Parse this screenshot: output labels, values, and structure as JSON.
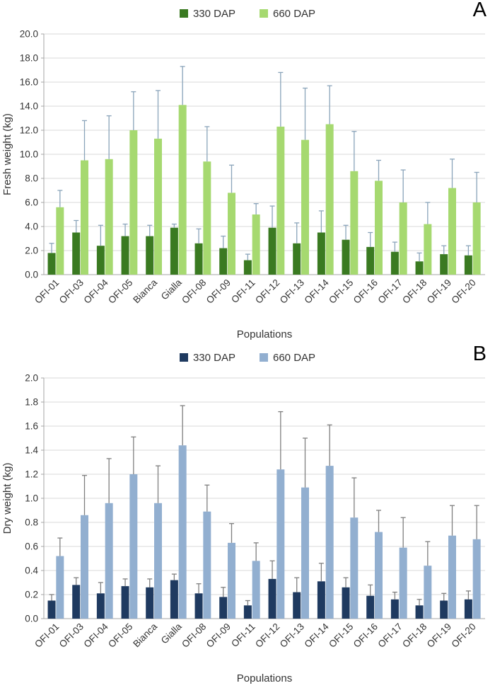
{
  "chart_data": [
    {
      "type": "bar",
      "panel_label": "A",
      "title": "",
      "xlabel": "Populations",
      "ylabel": "Fresh weight (kg)",
      "ylim": [
        0,
        20
      ],
      "ytick": 2,
      "tick_decimals": 1,
      "grid": true,
      "legend_position": "top",
      "error_color": "#8aa4ba",
      "categories": [
        "OFI-01",
        "OFI-03",
        "OFI-04",
        "OFI-05",
        "Bianca",
        "Gialla",
        "OFI-08",
        "OFI-09",
        "OFI-11",
        "OFI-12",
        "OFI-13",
        "OFI-14",
        "OFI-15",
        "OFI-16",
        "OFI-17",
        "OFI-18",
        "OFI-19",
        "OFI-20"
      ],
      "series": [
        {
          "name": "330 DAP",
          "color": "#3a7a21",
          "values": [
            1.8,
            3.5,
            2.4,
            3.2,
            3.2,
            3.9,
            2.6,
            2.2,
            1.2,
            3.9,
            2.6,
            3.5,
            2.9,
            2.3,
            1.9,
            1.1,
            1.7,
            1.6
          ],
          "errors": [
            0.8,
            1.0,
            1.7,
            1.0,
            0.9,
            0.3,
            1.2,
            1.0,
            0.5,
            1.8,
            1.7,
            1.8,
            1.2,
            1.2,
            0.8,
            0.7,
            0.7,
            0.8
          ]
        },
        {
          "name": "660 DAP",
          "color": "#a6d970",
          "values": [
            5.6,
            9.5,
            9.6,
            12.0,
            11.3,
            14.1,
            9.4,
            6.8,
            5.0,
            12.3,
            11.2,
            12.5,
            8.6,
            7.8,
            6.0,
            4.2,
            7.2,
            6.0
          ],
          "errors": [
            1.4,
            3.3,
            3.6,
            3.2,
            4.0,
            3.2,
            2.9,
            2.3,
            0.9,
            4.5,
            4.3,
            3.2,
            3.3,
            1.7,
            2.7,
            1.8,
            2.4,
            2.5
          ]
        }
      ]
    },
    {
      "type": "bar",
      "panel_label": "B",
      "title": "",
      "xlabel": "Populations",
      "ylabel": "Dry weight (kg)",
      "ylim": [
        0,
        2
      ],
      "ytick": 0.2,
      "tick_decimals": 1,
      "grid": true,
      "legend_position": "top",
      "error_color": "#7f7f7f",
      "categories": [
        "OFI-01",
        "OFI-03",
        "OFI-04",
        "OFI-05",
        "Bianca",
        "Gialla",
        "OFI-08",
        "OFI-09",
        "OFI-11",
        "OFI-12",
        "OFI-13",
        "OFI-14",
        "OFI-15",
        "OFI-16",
        "OFI-17",
        "OFI-18",
        "OFI-19",
        "OFI-20"
      ],
      "series": [
        {
          "name": "330 DAP",
          "color": "#1f3a60",
          "values": [
            0.15,
            0.28,
            0.21,
            0.27,
            0.26,
            0.32,
            0.21,
            0.18,
            0.11,
            0.33,
            0.22,
            0.31,
            0.26,
            0.19,
            0.16,
            0.11,
            0.15,
            0.16
          ],
          "errors": [
            0.05,
            0.06,
            0.09,
            0.06,
            0.07,
            0.05,
            0.08,
            0.08,
            0.04,
            0.15,
            0.12,
            0.15,
            0.08,
            0.09,
            0.06,
            0.05,
            0.06,
            0.07
          ]
        },
        {
          "name": "660 DAP",
          "color": "#92afd0",
          "values": [
            0.52,
            0.86,
            0.96,
            1.2,
            0.96,
            1.44,
            0.89,
            0.63,
            0.48,
            1.24,
            1.09,
            1.27,
            0.84,
            0.72,
            0.59,
            0.44,
            0.69,
            0.66
          ],
          "errors": [
            0.15,
            0.33,
            0.37,
            0.31,
            0.31,
            0.33,
            0.22,
            0.16,
            0.15,
            0.48,
            0.41,
            0.34,
            0.33,
            0.18,
            0.25,
            0.2,
            0.25,
            0.28
          ]
        }
      ]
    }
  ]
}
